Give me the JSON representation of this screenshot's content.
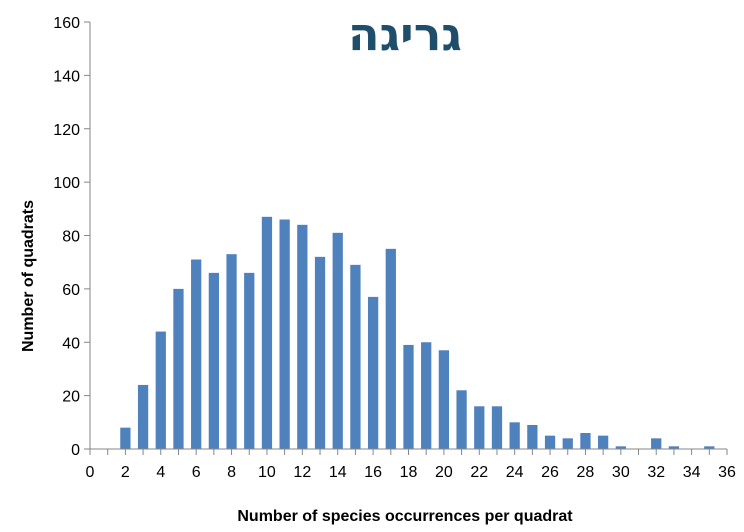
{
  "chart_data": {
    "type": "bar",
    "title": "גריגה",
    "xlabel": "Number of species occurrences per quadrat",
    "ylabel": "Number of quadrats",
    "xlim": [
      0,
      36
    ],
    "ylim": [
      0,
      160
    ],
    "x_ticks": [
      "0",
      "2",
      "4",
      "6",
      "8",
      "10",
      "12",
      "14",
      "16",
      "18",
      "20",
      "22",
      "24",
      "26",
      "28",
      "30",
      "32",
      "34",
      "36"
    ],
    "y_ticks": [
      "0",
      "20",
      "40",
      "60",
      "80",
      "100",
      "120",
      "140",
      "160"
    ],
    "grid": false,
    "legend": "none",
    "bar_color": "#4f81bd",
    "x": [
      2,
      3,
      4,
      5,
      6,
      7,
      8,
      9,
      10,
      11,
      12,
      13,
      14,
      15,
      16,
      17,
      18,
      19,
      20,
      21,
      22,
      23,
      24,
      25,
      26,
      27,
      28,
      29,
      30,
      31,
      32,
      33,
      34,
      35
    ],
    "values": [
      8,
      24,
      44,
      60,
      71,
      66,
      73,
      66,
      87,
      86,
      84,
      72,
      81,
      69,
      57,
      75,
      39,
      40,
      37,
      22,
      16,
      16,
      10,
      9,
      5,
      4,
      6,
      5,
      1,
      0,
      4,
      1,
      0,
      1
    ]
  }
}
